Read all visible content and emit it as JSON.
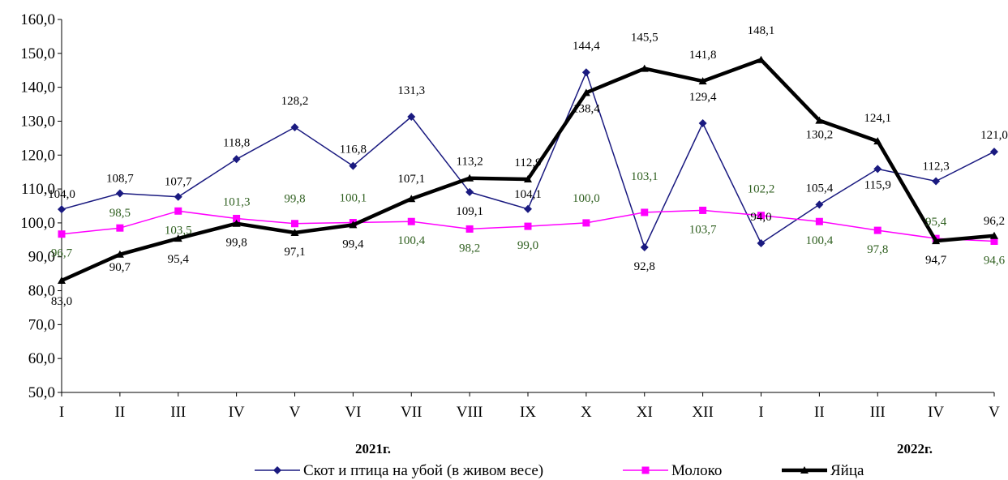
{
  "chart_data": {
    "type": "line",
    "categories": [
      "I",
      "II",
      "III",
      "IV",
      "V",
      "VI",
      "VII",
      "VIII",
      "IX",
      "X",
      "XI",
      "XII",
      "I",
      "II",
      "III",
      "IV",
      "V"
    ],
    "y_ticks": [
      "50,0",
      "60,0",
      "70,0",
      "80,0",
      "90,0",
      "100,0",
      "110,0",
      "120,0",
      "130,0",
      "140,0",
      "150,0",
      "160,0"
    ],
    "ylim": [
      50,
      160
    ],
    "grid": false,
    "legend_position": "bottom",
    "year_labels": [
      "2021г.",
      "2022г."
    ],
    "series": [
      {
        "name": "Скот и птица на убой (в живом весе)",
        "color": "#1a1a80",
        "marker": "diamond",
        "values": [
          104.0,
          108.7,
          107.7,
          118.8,
          128.2,
          116.8,
          131.3,
          109.1,
          104.1,
          144.4,
          92.8,
          129.4,
          94.0,
          105.4,
          115.9,
          112.3,
          121.0
        ],
        "labels": [
          "104,0",
          "108,7",
          "107,7",
          "118,8",
          "128,2",
          "116,8",
          "131,3",
          "109,1",
          "104,1",
          "144,4",
          "92,8",
          "129,4",
          "94,0",
          "105,4",
          "115,9",
          "112,3",
          "121,0"
        ]
      },
      {
        "name": "Молоко",
        "color": "#ff00ff",
        "label_color": "#2f5f1f",
        "marker": "square",
        "values": [
          96.7,
          98.5,
          103.5,
          101.3,
          99.8,
          100.1,
          100.4,
          98.2,
          99.0,
          100.0,
          103.1,
          103.7,
          102.2,
          100.4,
          97.8,
          95.4,
          94.6
        ],
        "labels": [
          "96,7",
          "98,5",
          "103,5",
          "101,3",
          "99,8",
          "100,1",
          "100,4",
          "98,2",
          "99,0",
          "100,0",
          "103,1",
          "103,7",
          "102,2",
          "100,4",
          "97,8",
          "95,4",
          "94,6"
        ]
      },
      {
        "name": "Яйца",
        "color": "#000000",
        "marker": "triangle",
        "values": [
          83.0,
          90.7,
          95.4,
          99.8,
          97.1,
          99.4,
          107.1,
          113.2,
          112.9,
          138.4,
          145.5,
          141.8,
          148.1,
          130.2,
          124.1,
          94.7,
          96.2
        ],
        "labels": [
          "83,0",
          "90,7",
          "95,4",
          "99,8",
          "97,1",
          "99,4",
          "107,1",
          "113,2",
          "112,9",
          "138,4",
          "145,5",
          "141,8",
          "148,1",
          "130,2",
          "124,1",
          "94,7",
          "96,2"
        ]
      }
    ]
  }
}
